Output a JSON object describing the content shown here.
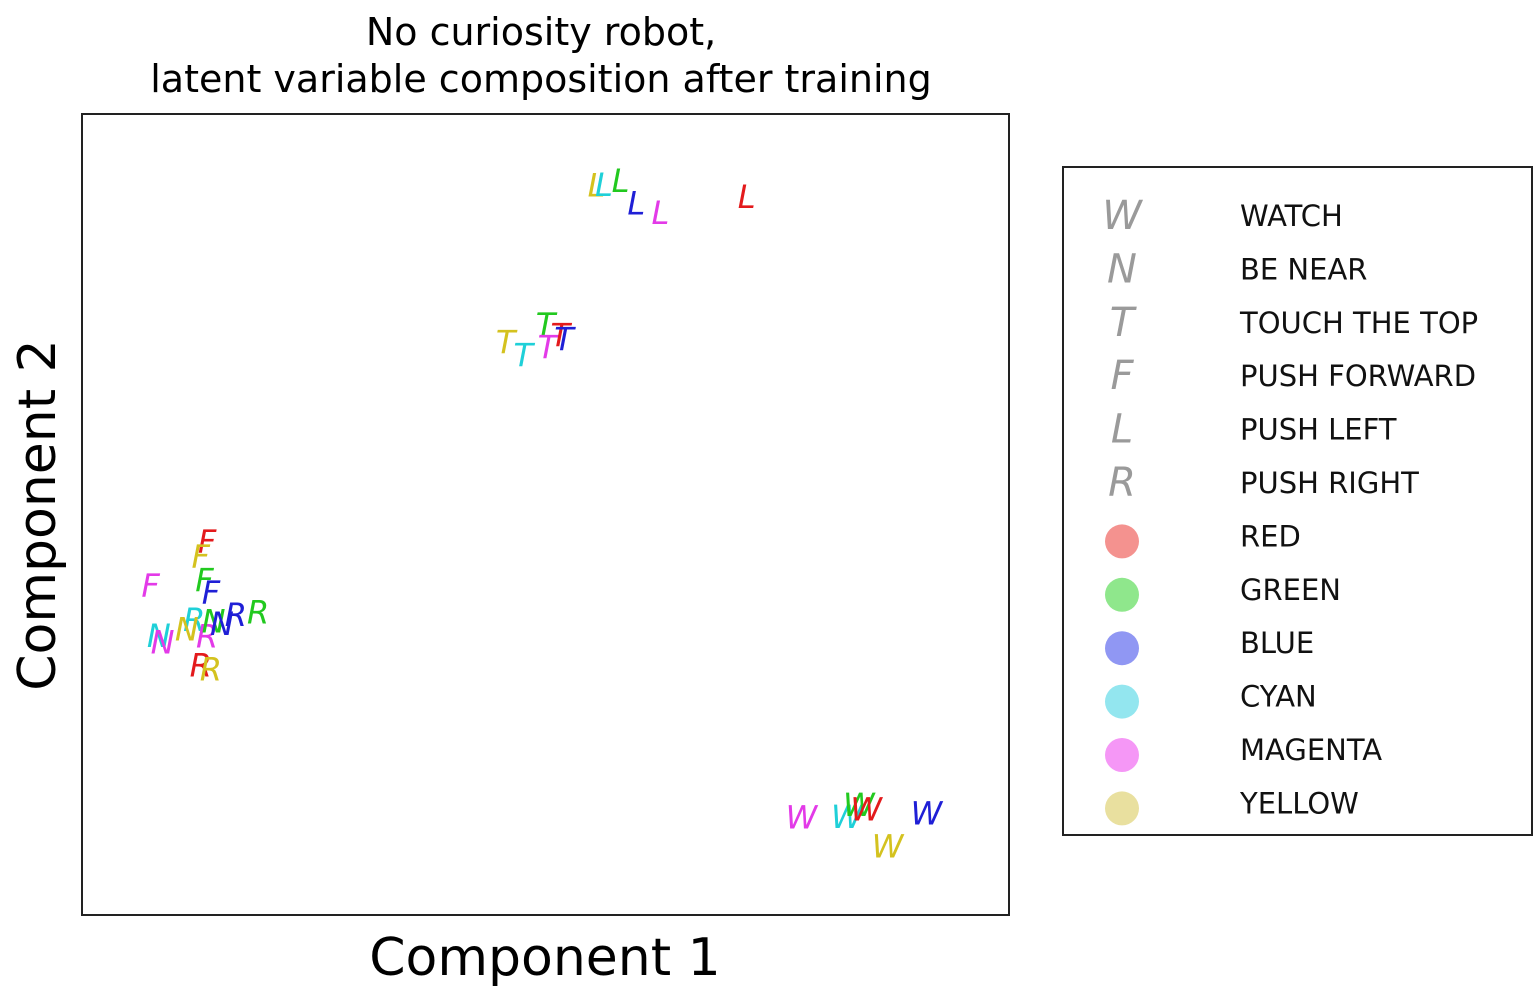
{
  "chart_data": {
    "type": "scatter",
    "title": [
      "No curiosity robot,",
      "latent variable composition after training"
    ],
    "xlabel": "Component 1",
    "ylabel": "Component 2",
    "xlim": [
      0,
      100
    ],
    "ylim": [
      0,
      100
    ],
    "grid": false,
    "ticks": false,
    "legend_position": "right-outside",
    "colors": {
      "RED": "#e31a1c",
      "GREEN": "#22c91f",
      "BLUE": "#1f1fd6",
      "CYAN": "#1fd0d8",
      "MAGENTA": "#e33ae8",
      "YELLOW": "#d4c21f"
    },
    "legend": {
      "symbols": [
        {
          "glyph": "W",
          "label": "WATCH"
        },
        {
          "glyph": "N",
          "label": "BE NEAR"
        },
        {
          "glyph": "T",
          "label": "TOUCH THE TOP"
        },
        {
          "glyph": "F",
          "label": "PUSH FORWARD"
        },
        {
          "glyph": "L",
          "label": "PUSH LEFT"
        },
        {
          "glyph": "R",
          "label": "PUSH RIGHT"
        }
      ],
      "colors": [
        {
          "label": "RED",
          "swatch": "#f4928f"
        },
        {
          "label": "GREEN",
          "swatch": "#8fe78c"
        },
        {
          "label": "BLUE",
          "swatch": "#9097f3"
        },
        {
          "label": "CYAN",
          "swatch": "#93e6ef"
        },
        {
          "label": "MAGENTA",
          "swatch": "#f597f6"
        },
        {
          "label": "YELLOW",
          "swatch": "#e9e09f"
        }
      ]
    },
    "points": [
      {
        "label": "L",
        "color": "YELLOW",
        "x": 55.5,
        "y": 90.8
      },
      {
        "label": "L",
        "color": "CYAN",
        "x": 56.3,
        "y": 90.9
      },
      {
        "label": "L",
        "color": "GREEN",
        "x": 58.1,
        "y": 91.4
      },
      {
        "label": "L",
        "color": "BLUE",
        "x": 59.8,
        "y": 88.6
      },
      {
        "label": "L",
        "color": "MAGENTA",
        "x": 62.4,
        "y": 87.4
      },
      {
        "label": "L",
        "color": "RED",
        "x": 71.7,
        "y": 89.4
      },
      {
        "label": "T",
        "color": "YELLOW",
        "x": 45.7,
        "y": 71.2
      },
      {
        "label": "T",
        "color": "CYAN",
        "x": 47.6,
        "y": 69.6
      },
      {
        "label": "T",
        "color": "GREEN",
        "x": 50.0,
        "y": 73.4
      },
      {
        "label": "T",
        "color": "MAGENTA",
        "x": 50.2,
        "y": 70.6
      },
      {
        "label": "T",
        "color": "RED",
        "x": 51.6,
        "y": 72.1
      },
      {
        "label": "T",
        "color": "BLUE",
        "x": 52.0,
        "y": 71.6
      },
      {
        "label": "F",
        "color": "RED",
        "x": 13.5,
        "y": 46.4
      },
      {
        "label": "F",
        "color": "YELLOW",
        "x": 12.8,
        "y": 44.5
      },
      {
        "label": "F",
        "color": "MAGENTA",
        "x": 7.4,
        "y": 40.9
      },
      {
        "label": "F",
        "color": "GREEN",
        "x": 13.2,
        "y": 41.6
      },
      {
        "label": "F",
        "color": "BLUE",
        "x": 13.9,
        "y": 40.0
      },
      {
        "label": "R",
        "color": "GREEN",
        "x": 19.0,
        "y": 37.5
      },
      {
        "label": "R",
        "color": "BLUE",
        "x": 16.6,
        "y": 37.2
      },
      {
        "label": "R",
        "color": "CYAN",
        "x": 12.1,
        "y": 36.6
      },
      {
        "label": "R",
        "color": "MAGENTA",
        "x": 13.5,
        "y": 34.5
      },
      {
        "label": "R",
        "color": "RED",
        "x": 12.8,
        "y": 30.9
      },
      {
        "label": "R",
        "color": "YELLOW",
        "x": 13.9,
        "y": 30.4
      },
      {
        "label": "N",
        "color": "GREEN",
        "x": 14.2,
        "y": 36.4
      },
      {
        "label": "N",
        "color": "BLUE",
        "x": 15.1,
        "y": 36.1
      },
      {
        "label": "N",
        "color": "YELLOW",
        "x": 11.3,
        "y": 35.4
      },
      {
        "label": "N",
        "color": "CYAN",
        "x": 8.3,
        "y": 34.6
      },
      {
        "label": "N",
        "color": "MAGENTA",
        "x": 8.7,
        "y": 33.8
      },
      {
        "label": "W",
        "color": "MAGENTA",
        "x": 77.6,
        "y": 11.9
      },
      {
        "label": "W",
        "color": "CYAN",
        "x": 82.5,
        "y": 12.0
      },
      {
        "label": "W",
        "color": "GREEN",
        "x": 83.8,
        "y": 13.5
      },
      {
        "label": "W",
        "color": "RED",
        "x": 84.6,
        "y": 12.9
      },
      {
        "label": "W",
        "color": "BLUE",
        "x": 91.1,
        "y": 12.4
      },
      {
        "label": "W",
        "color": "YELLOW",
        "x": 86.9,
        "y": 8.3
      }
    ]
  }
}
